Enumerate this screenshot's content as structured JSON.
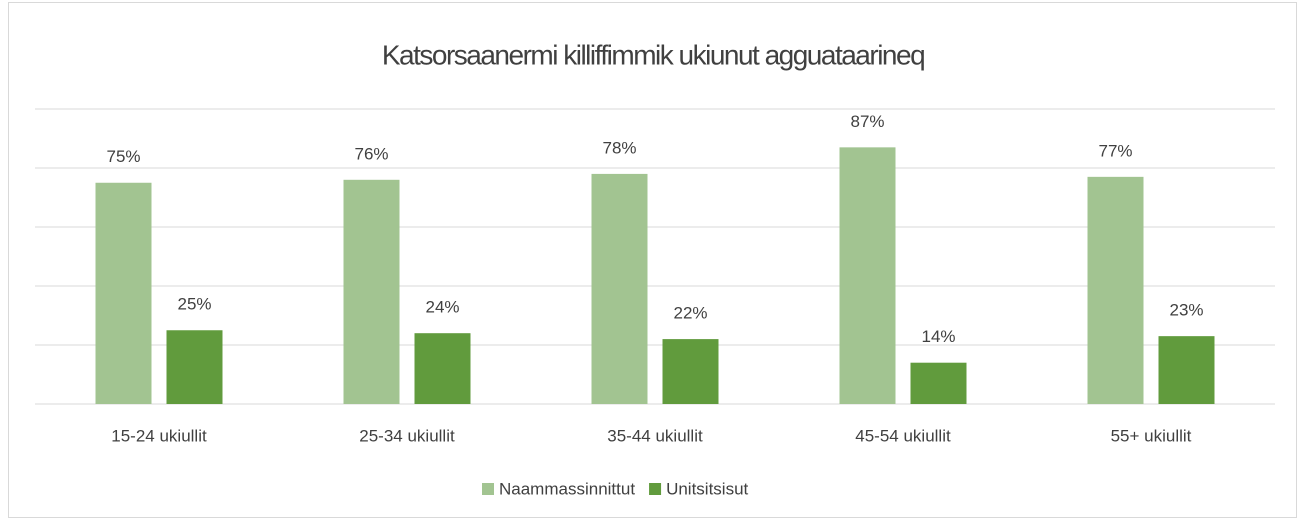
{
  "chart_data": {
    "type": "bar",
    "title": "Katsorsaanermi killiffimmik ukiunut agguataarineq",
    "categories": [
      "15-24 ukiullit",
      "25-34 ukiullit",
      "35-44 ukiullit",
      "45-54 ukiullit",
      "55+ ukiullit"
    ],
    "series": [
      {
        "name": "Naammassinnittut",
        "color": "#a2c491",
        "values": [
          75,
          76,
          78,
          87,
          77
        ],
        "value_labels": [
          "75%",
          "76%",
          "78%",
          "87%",
          "77%"
        ]
      },
      {
        "name": "Unitsitsisut",
        "color": "#619b3d",
        "values": [
          25,
          24,
          22,
          14,
          23
        ],
        "value_labels": [
          "25%",
          "24%",
          "22%",
          "14%",
          "23%"
        ]
      }
    ],
    "ylim": [
      0,
      100
    ],
    "yticks": [
      0,
      20,
      40,
      60,
      80,
      100
    ],
    "grid": true,
    "legend": "bottom"
  }
}
